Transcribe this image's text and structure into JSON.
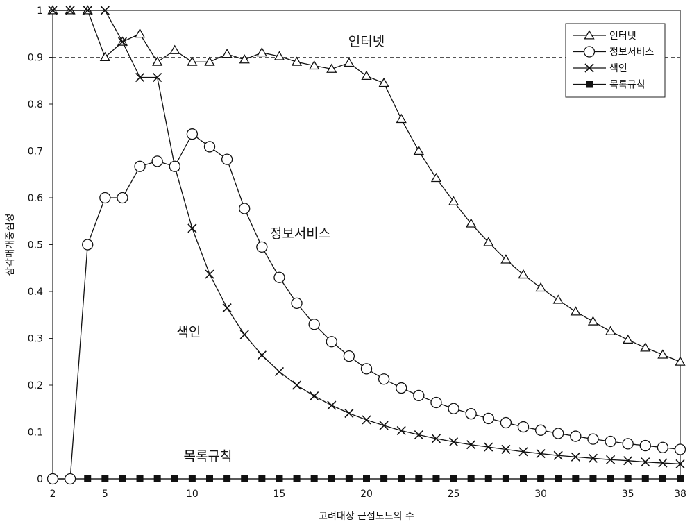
{
  "chart_data": {
    "type": "line",
    "xlabel": "고려대상 근접노드의 수",
    "ylabel": "삼각매개중심성",
    "xlim": [
      2,
      38
    ],
    "ylim": [
      0,
      1
    ],
    "xticks": [
      2,
      5,
      10,
      15,
      20,
      25,
      30,
      35,
      38
    ],
    "yticks": [
      0,
      0.1,
      0.2,
      0.3,
      0.4,
      0.5,
      0.6,
      0.7,
      0.8,
      0.9,
      1
    ],
    "grid": false,
    "legend_position": "top-right",
    "reference_line": {
      "y": 0.9,
      "style": "dashed"
    },
    "x": [
      2,
      3,
      4,
      5,
      6,
      7,
      8,
      9,
      10,
      11,
      12,
      13,
      14,
      15,
      16,
      17,
      18,
      19,
      20,
      21,
      22,
      23,
      24,
      25,
      26,
      27,
      28,
      29,
      30,
      31,
      32,
      33,
      34,
      35,
      36,
      37,
      38
    ],
    "series": [
      {
        "name": "인터넷",
        "marker": "triangle",
        "values": [
          1,
          1,
          1,
          0.9,
          0.933,
          0.95,
          0.89,
          0.915,
          0.89,
          0.89,
          0.907,
          0.895,
          0.91,
          0.902,
          0.89,
          0.882,
          0.875,
          0.888,
          0.86,
          0.845,
          0.768,
          0.7,
          0.642,
          0.592,
          0.545,
          0.505,
          0.468,
          0.436,
          0.408,
          0.382,
          0.357,
          0.336,
          0.315,
          0.297,
          0.28,
          0.265,
          0.25
        ]
      },
      {
        "name": "정보서비스",
        "marker": "circle",
        "values": [
          0,
          0,
          0.5,
          0.6,
          0.6,
          0.667,
          0.678,
          0.667,
          0.736,
          0.709,
          0.682,
          0.577,
          0.495,
          0.43,
          0.375,
          0.33,
          0.293,
          0.262,
          0.235,
          0.213,
          0.194,
          0.178,
          0.163,
          0.15,
          0.139,
          0.129,
          0.12,
          0.111,
          0.104,
          0.097,
          0.091,
          0.085,
          0.08,
          0.075,
          0.071,
          0.067,
          0.063
        ]
      },
      {
        "name": "색인",
        "marker": "x",
        "values": [
          1,
          1,
          1,
          1,
          0.933,
          0.857,
          0.857,
          0.667,
          0.535,
          0.437,
          0.365,
          0.308,
          0.264,
          0.229,
          0.2,
          0.177,
          0.157,
          0.14,
          0.126,
          0.114,
          0.103,
          0.094,
          0.086,
          0.079,
          0.073,
          0.068,
          0.063,
          0.058,
          0.054,
          0.05,
          0.047,
          0.044,
          0.041,
          0.039,
          0.036,
          0.034,
          0.032
        ]
      },
      {
        "name": "목록규칙",
        "marker": "square",
        "values": [
          0,
          0,
          0,
          0,
          0,
          0,
          0,
          0,
          0,
          0,
          0,
          0,
          0,
          0,
          0,
          0,
          0,
          0,
          0,
          0,
          0,
          0,
          0,
          0,
          0,
          0,
          0,
          0,
          0,
          0,
          0,
          0,
          0,
          0,
          0,
          0,
          0
        ]
      }
    ],
    "annotations": [
      {
        "text": "인터넷",
        "x": 20,
        "y": 0.935
      },
      {
        "text": "정보서비스",
        "x": 16.2,
        "y": 0.525
      },
      {
        "text": "색인",
        "x": 9.8,
        "y": 0.315
      },
      {
        "text": "목록규칙",
        "x": 10.9,
        "y": 0.05
      }
    ]
  }
}
